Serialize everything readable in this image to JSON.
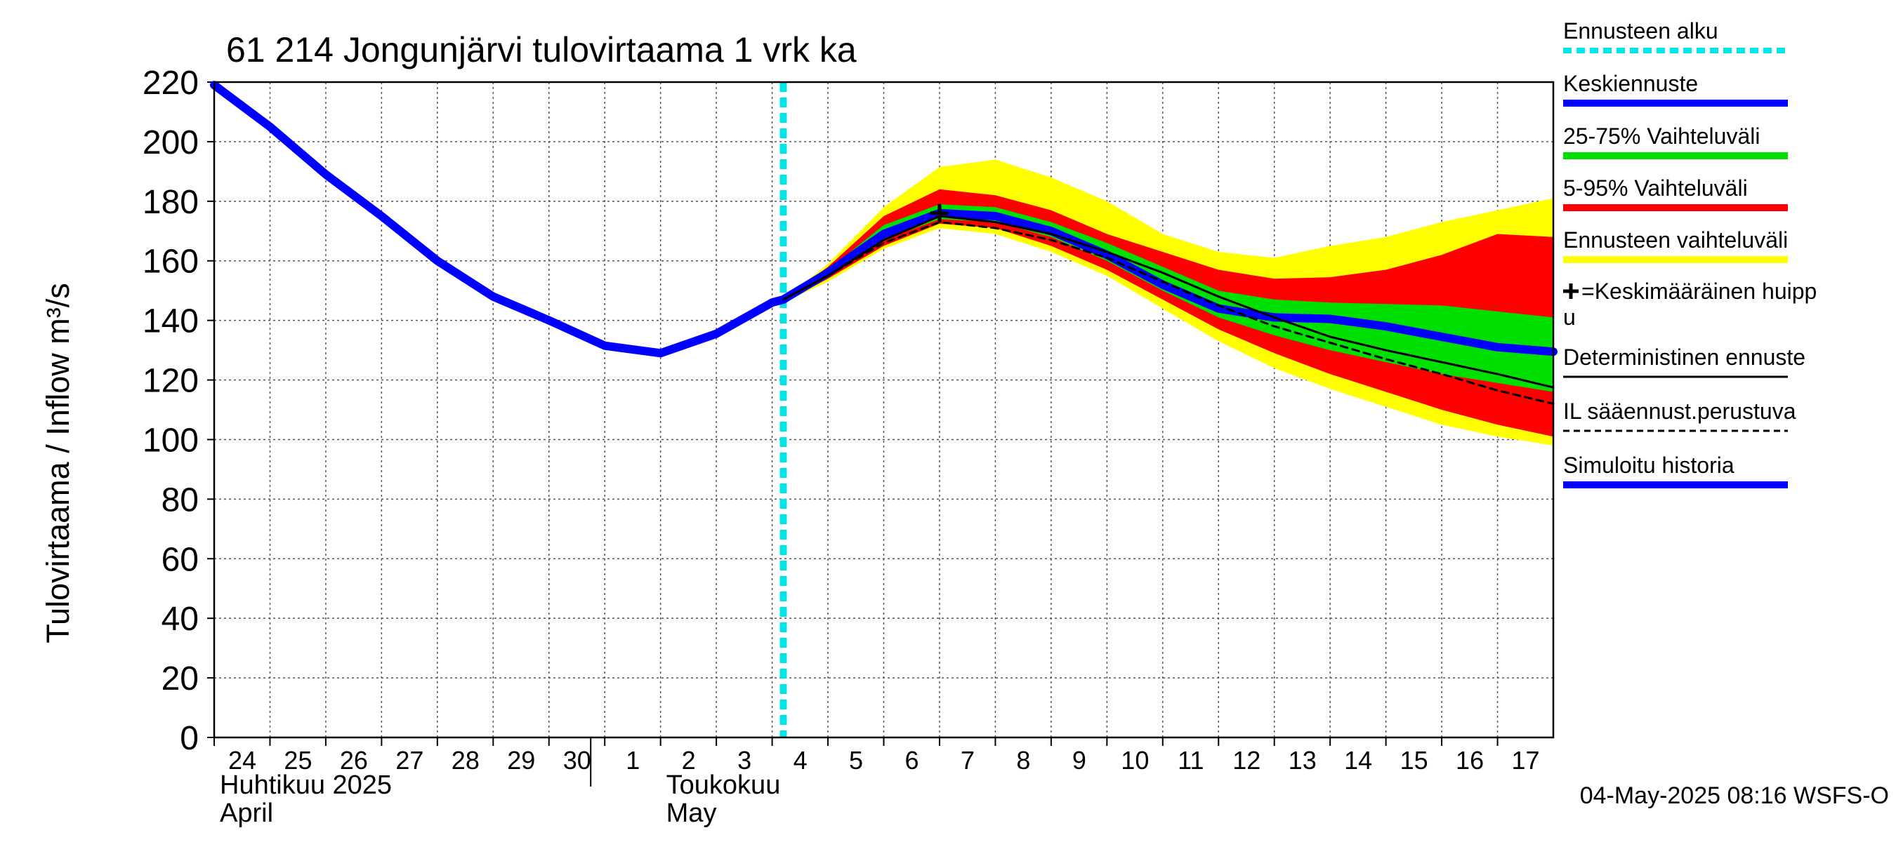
{
  "chart_data": {
    "type": "line",
    "title": "61 214 Jongunjärvi tulovirtaama 1 vrk ka",
    "ylabel": "Tulovirtaama / Inflow    m³/s",
    "ylim": [
      0,
      220
    ],
    "yticks": [
      0,
      20,
      40,
      60,
      80,
      100,
      120,
      140,
      160,
      180,
      200,
      220
    ],
    "x_range_days": [
      0,
      24
    ],
    "x_ticks": [
      {
        "day": 0,
        "label": "24"
      },
      {
        "day": 1,
        "label": "25"
      },
      {
        "day": 2,
        "label": "26"
      },
      {
        "day": 3,
        "label": "27"
      },
      {
        "day": 4,
        "label": "28"
      },
      {
        "day": 5,
        "label": "29"
      },
      {
        "day": 6,
        "label": "30"
      },
      {
        "day": 7,
        "label": "1"
      },
      {
        "day": 8,
        "label": "2"
      },
      {
        "day": 9,
        "label": "3"
      },
      {
        "day": 10,
        "label": "4"
      },
      {
        "day": 11,
        "label": "5"
      },
      {
        "day": 12,
        "label": "6"
      },
      {
        "day": 13,
        "label": "7"
      },
      {
        "day": 14,
        "label": "8"
      },
      {
        "day": 15,
        "label": "9"
      },
      {
        "day": 16,
        "label": "10"
      },
      {
        "day": 17,
        "label": "11"
      },
      {
        "day": 18,
        "label": "12"
      },
      {
        "day": 19,
        "label": "13"
      },
      {
        "day": 20,
        "label": "14"
      },
      {
        "day": 21,
        "label": "15"
      },
      {
        "day": 22,
        "label": "16"
      },
      {
        "day": 23,
        "label": "17"
      }
    ],
    "month_labels": [
      {
        "day": 0,
        "line1": "Huhtikuu  2025",
        "line2": "April"
      },
      {
        "day": 8,
        "line1": "Toukokuu",
        "line2": "May"
      }
    ],
    "month_divider_day": 7,
    "forecast_start_day": 10.2,
    "series": [
      {
        "name": "Simuloitu historia",
        "color": "#0000ff",
        "points": [
          [
            0,
            219
          ],
          [
            1,
            205
          ],
          [
            2,
            189
          ],
          [
            3,
            175
          ],
          [
            4,
            160
          ],
          [
            5,
            148
          ],
          [
            6,
            140
          ],
          [
            7,
            131.5
          ],
          [
            8,
            129
          ],
          [
            9,
            135.5
          ],
          [
            10,
            146
          ],
          [
            10.2,
            147
          ]
        ]
      },
      {
        "name": "Keskiennuste",
        "color": "#0000ff",
        "points": [
          [
            10.2,
            147
          ],
          [
            11,
            156
          ],
          [
            12,
            169
          ],
          [
            13,
            176
          ],
          [
            14,
            175
          ],
          [
            15,
            170
          ],
          [
            16,
            162
          ],
          [
            17,
            152
          ],
          [
            18,
            144
          ],
          [
            19,
            141
          ],
          [
            20,
            140.5
          ],
          [
            21,
            138
          ],
          [
            22,
            134.5
          ],
          [
            23,
            131
          ],
          [
            24,
            129.5
          ]
        ]
      },
      {
        "name": "Deterministinen ennuste",
        "color": "#000000",
        "points": [
          [
            10.2,
            147
          ],
          [
            11,
            155
          ],
          [
            12,
            167
          ],
          [
            13,
            175
          ],
          [
            14,
            173
          ],
          [
            15,
            169
          ],
          [
            16,
            163
          ],
          [
            17,
            156
          ],
          [
            18,
            148
          ],
          [
            19,
            141
          ],
          [
            20,
            134.5
          ],
          [
            21,
            130
          ],
          [
            22,
            126
          ],
          [
            23,
            122
          ],
          [
            24,
            117.5
          ]
        ]
      },
      {
        "name": "IL sääennust.perustuva",
        "color": "#000000",
        "dashed": true,
        "points": [
          [
            10.2,
            147
          ],
          [
            11,
            155
          ],
          [
            12,
            166
          ],
          [
            13,
            173
          ],
          [
            14,
            171
          ],
          [
            15,
            167
          ],
          [
            16,
            161
          ],
          [
            17,
            153
          ],
          [
            18,
            145
          ],
          [
            19,
            138
          ],
          [
            20,
            132.5
          ],
          [
            21,
            127
          ],
          [
            22,
            122
          ],
          [
            23,
            116.5
          ],
          [
            24,
            112
          ]
        ]
      }
    ],
    "bands": [
      {
        "name": "Ennusteen vaihteluväli",
        "color": "#ffff00",
        "upper": [
          [
            10.2,
            147
          ],
          [
            11,
            159
          ],
          [
            12,
            178
          ],
          [
            13,
            191.5
          ],
          [
            14,
            194
          ],
          [
            15,
            188
          ],
          [
            16,
            180
          ],
          [
            17,
            169
          ],
          [
            18,
            163
          ],
          [
            19,
            161
          ],
          [
            20,
            165
          ],
          [
            21,
            168
          ],
          [
            22,
            173
          ],
          [
            23,
            177
          ],
          [
            24,
            181
          ]
        ],
        "lower": [
          [
            10.2,
            146
          ],
          [
            11,
            153
          ],
          [
            12,
            164
          ],
          [
            13,
            171
          ],
          [
            14,
            169
          ],
          [
            15,
            163
          ],
          [
            16,
            155
          ],
          [
            17,
            144
          ],
          [
            18,
            133
          ],
          [
            19,
            124
          ],
          [
            20,
            117
          ],
          [
            21,
            111
          ],
          [
            22,
            105
          ],
          [
            23,
            101
          ],
          [
            24,
            98
          ]
        ]
      },
      {
        "name": "5-95% Vaihteluväli",
        "color": "#ff0000",
        "upper": [
          [
            10.2,
            147
          ],
          [
            11,
            158
          ],
          [
            12,
            175
          ],
          [
            13,
            184
          ],
          [
            14,
            182
          ],
          [
            15,
            177
          ],
          [
            16,
            169
          ],
          [
            17,
            163
          ],
          [
            18,
            157
          ],
          [
            19,
            154
          ],
          [
            20,
            154.5
          ],
          [
            21,
            157
          ],
          [
            22,
            162
          ],
          [
            23,
            169
          ],
          [
            24,
            168
          ]
        ],
        "lower": [
          [
            10.2,
            146
          ],
          [
            11,
            154
          ],
          [
            12,
            165
          ],
          [
            13,
            172.5
          ],
          [
            14,
            171
          ],
          [
            15,
            165
          ],
          [
            16,
            157
          ],
          [
            17,
            147
          ],
          [
            18,
            137
          ],
          [
            19,
            129
          ],
          [
            20,
            122
          ],
          [
            21,
            116
          ],
          [
            22,
            110
          ],
          [
            23,
            105
          ],
          [
            24,
            101
          ]
        ]
      },
      {
        "name": "25-75% Vaihteluväli",
        "color": "#00e000",
        "upper": [
          [
            10.2,
            147
          ],
          [
            11,
            157
          ],
          [
            12,
            172
          ],
          [
            13,
            179
          ],
          [
            14,
            178
          ],
          [
            15,
            173
          ],
          [
            16,
            166
          ],
          [
            17,
            158
          ],
          [
            18,
            150
          ],
          [
            19,
            147
          ],
          [
            20,
            146
          ],
          [
            21,
            145.5
          ],
          [
            22,
            145
          ],
          [
            23,
            143
          ],
          [
            24,
            141
          ]
        ],
        "lower": [
          [
            10.2,
            146.5
          ],
          [
            11,
            155
          ],
          [
            12,
            167
          ],
          [
            13,
            174
          ],
          [
            14,
            173
          ],
          [
            15,
            168
          ],
          [
            16,
            160
          ],
          [
            17,
            150
          ],
          [
            18,
            141
          ],
          [
            19,
            135
          ],
          [
            20,
            130
          ],
          [
            21,
            126
          ],
          [
            22,
            122
          ],
          [
            23,
            119
          ],
          [
            24,
            116
          ]
        ]
      }
    ],
    "peak_marker": {
      "name": "Keskimääräinen huippu",
      "day": 13,
      "value": 176
    },
    "legend_position": "right",
    "legend": [
      {
        "label": "Ennusteen alku",
        "color": "#00e5e5",
        "style": "dotted"
      },
      {
        "label": "Keskiennuste",
        "color": "#0000ff",
        "style": "thick"
      },
      {
        "label": "25-75% Vaihteluväli",
        "color": "#00e000",
        "style": "thick"
      },
      {
        "label": "5-95% Vaihteluväli",
        "color": "#ff0000",
        "style": "thick"
      },
      {
        "label": "Ennusteen vaihteluväli",
        "color": "#ffff00",
        "style": "thick"
      },
      {
        "label": "=Keskimääräinen huipp",
        "label2": "u",
        "color": "#000000",
        "style": "marker"
      },
      {
        "label": "Deterministinen ennuste",
        "color": "#000000",
        "style": "thin"
      },
      {
        "label": "IL sääennust.perustuva",
        "color": "#000000",
        "style": "dashed"
      },
      {
        "label": "Simuloitu historia",
        "color": "#0000ff",
        "style": "thick"
      }
    ],
    "footer": "04-May-2025 08:16 WSFS-O"
  }
}
